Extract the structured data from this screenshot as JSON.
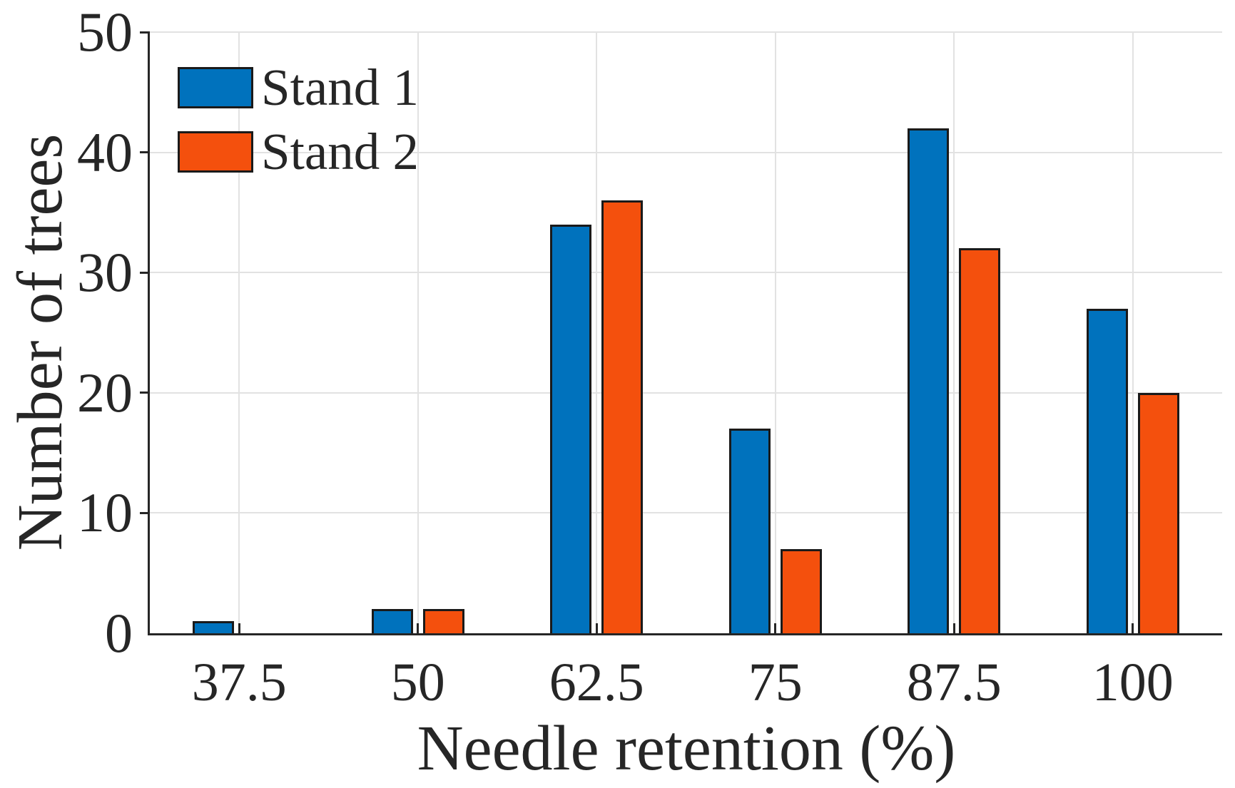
{
  "chart_data": {
    "type": "bar",
    "title": "",
    "xlabel": "Needle retention (%)",
    "ylabel": "Number of trees",
    "categories": [
      "37.5",
      "50",
      "62.5",
      "75",
      "87.5",
      "100"
    ],
    "series": [
      {
        "name": "Stand 1",
        "color": "#0072BD",
        "values": [
          1,
          2,
          34,
          17,
          42,
          27
        ]
      },
      {
        "name": "Stand 2",
        "color": "#F4500D",
        "values": [
          0,
          2,
          36,
          7,
          32,
          20
        ]
      }
    ],
    "ylim": [
      0,
      50
    ],
    "yticks": [
      0,
      10,
      20,
      30,
      40,
      50
    ],
    "grid": true,
    "grid_axes": "both",
    "legend_position": "top-left",
    "legend_box": false,
    "style": {
      "background_color": "#FFFFFF",
      "axis_color": "#262626",
      "grid_color": "#E2E2E2",
      "text_color": "#262626",
      "bar_edge_color": "#1A1A1A"
    }
  }
}
